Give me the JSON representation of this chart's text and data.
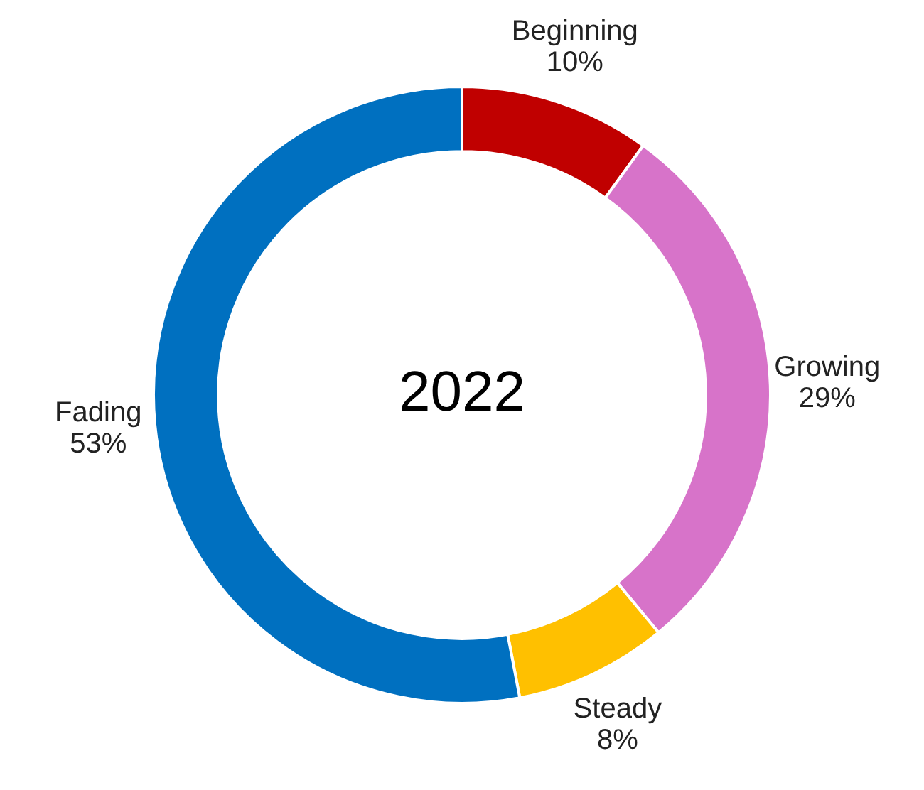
{
  "chart_data": {
    "type": "donut",
    "title": "2022",
    "categories": [
      "Beginning",
      "Growing",
      "Steady",
      "Fading"
    ],
    "values": [
      10,
      29,
      8,
      53
    ],
    "colors": [
      "#c00000",
      "#d773c9",
      "#ffc000",
      "#0070c0"
    ],
    "value_labels": [
      "10%",
      "29%",
      "8%",
      "53%"
    ],
    "legend": false
  }
}
